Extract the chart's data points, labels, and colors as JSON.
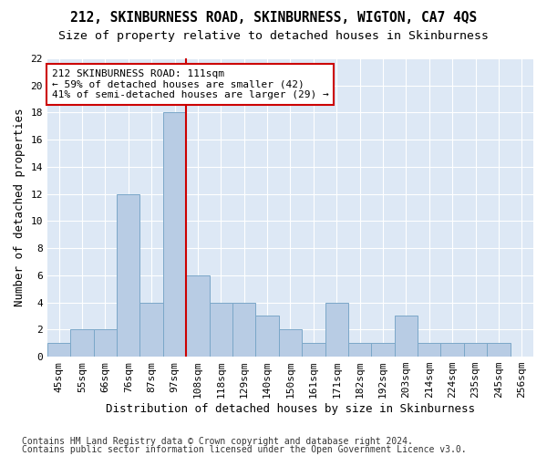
{
  "title1": "212, SKINBURNESS ROAD, SKINBURNESS, WIGTON, CA7 4QS",
  "title2": "Size of property relative to detached houses in Skinburness",
  "xlabel": "Distribution of detached houses by size in Skinburness",
  "ylabel": "Number of detached properties",
  "bin_labels": [
    "45sqm",
    "55sqm",
    "66sqm",
    "76sqm",
    "87sqm",
    "97sqm",
    "108sqm",
    "118sqm",
    "129sqm",
    "140sqm",
    "150sqm",
    "161sqm",
    "171sqm",
    "182sqm",
    "192sqm",
    "203sqm",
    "214sqm",
    "224sqm",
    "235sqm",
    "245sqm",
    "256sqm"
  ],
  "counts": [
    1,
    2,
    2,
    12,
    4,
    18,
    6,
    4,
    4,
    3,
    2,
    1,
    4,
    1,
    1,
    3,
    1,
    1,
    1,
    1,
    0
  ],
  "bar_color": "#b8cce4",
  "bar_edge_color": "#7ba7c8",
  "vline_x": 5.5,
  "vline_color": "#cc0000",
  "annotation_text": "212 SKINBURNESS ROAD: 111sqm\n← 59% of detached houses are smaller (42)\n41% of semi-detached houses are larger (29) →",
  "annotation_box_color": "#ffffff",
  "annotation_box_edge": "#cc0000",
  "ylim": [
    0,
    22
  ],
  "yticks": [
    0,
    2,
    4,
    6,
    8,
    10,
    12,
    14,
    16,
    18,
    20,
    22
  ],
  "background_color": "#dde8f5",
  "footer1": "Contains HM Land Registry data © Crown copyright and database right 2024.",
  "footer2": "Contains public sector information licensed under the Open Government Licence v3.0.",
  "title1_fontsize": 10.5,
  "title2_fontsize": 9.5,
  "xlabel_fontsize": 9,
  "ylabel_fontsize": 9,
  "tick_fontsize": 8,
  "annotation_fontsize": 8,
  "footer_fontsize": 7
}
